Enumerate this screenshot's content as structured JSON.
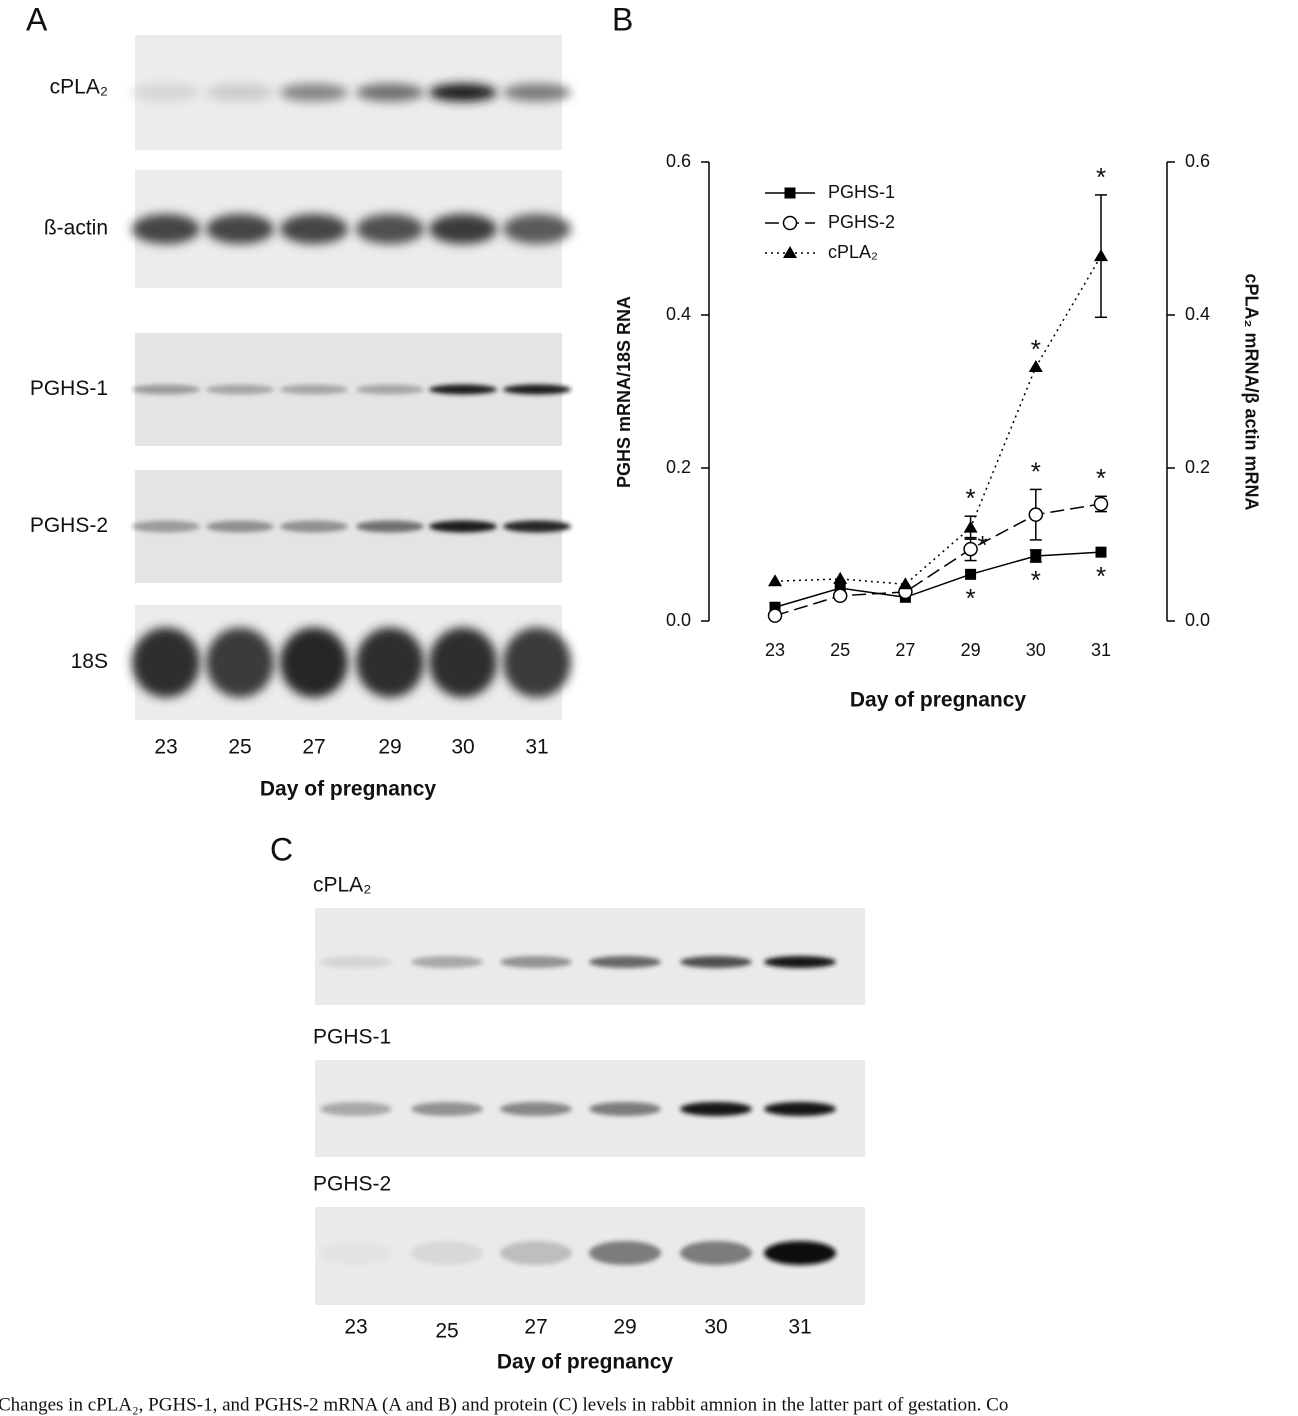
{
  "panel_a": {
    "letter": "A",
    "blots": [
      "cPLA₂",
      "ß-actin",
      "PGHS-1",
      "PGHS-2",
      "18S"
    ],
    "days": [
      "23",
      "25",
      "27",
      "29",
      "30",
      "31"
    ],
    "xlabel": "Day of pregnancy"
  },
  "chart_data": {
    "type": "line",
    "panel": "B",
    "categories": [
      "23",
      "25",
      "27",
      "29",
      "30",
      "31"
    ],
    "xlabel": "Day of pregnancy",
    "ylabel": "PGHS mRNA/18S RNA",
    "y2label": "cPLA₂ mRNA/β actin mRNA",
    "ylim": [
      0,
      0.6
    ],
    "yticks": [
      {
        "value": 0,
        "label": "0.0"
      },
      0.2,
      0.4,
      0.6
    ],
    "y2lim": [
      0,
      0.6
    ],
    "y2ticks": [
      {
        "value": 0,
        "label": "0.0"
      },
      0.2,
      0.4,
      0.6
    ],
    "legend": "upper left",
    "series": [
      {
        "name": "PGHS-1",
        "color": "#000000",
        "marker": "square",
        "dash": "solid",
        "values": [
          0.018,
          0.043,
          0.031,
          0.061,
          0.085,
          0.09
        ],
        "errors": [
          null,
          null,
          null,
          null,
          0.008,
          null
        ],
        "significance": [
          null,
          null,
          null,
          "*",
          "*",
          "*"
        ]
      },
      {
        "name": "PGHS-2",
        "color": "#000000",
        "marker": "open-circle",
        "dash": "dashed",
        "values": [
          0.007,
          0.033,
          0.038,
          0.094,
          0.139,
          0.153
        ],
        "errors": [
          null,
          null,
          null,
          0.015,
          0.033,
          0.01
        ],
        "significance": [
          null,
          null,
          null,
          "*",
          "*",
          "*"
        ]
      },
      {
        "name": "cPLA₂",
        "color": "#000000",
        "marker": "triangle",
        "dash": "dotted",
        "axis": "y2",
        "values": [
          0.052,
          0.055,
          0.048,
          0.122,
          0.332,
          0.477
        ],
        "errors": [
          null,
          null,
          null,
          0.015,
          null,
          0.08
        ],
        "significance": [
          null,
          null,
          null,
          "*",
          "*",
          "*"
        ]
      }
    ]
  },
  "panel_c": {
    "letter": "C",
    "blots": [
      "cPLA₂",
      "PGHS-1",
      "PGHS-2"
    ],
    "days": [
      "23",
      "25",
      "27",
      "29",
      "30",
      "31"
    ],
    "xlabel": "Day of pregnancy"
  },
  "caption": "Changes in cPLA₂, PGHS-1, and PGHS-2 mRNA (A and B) and protein (C) levels in rabbit amnion in the latter part of gestation. Co"
}
